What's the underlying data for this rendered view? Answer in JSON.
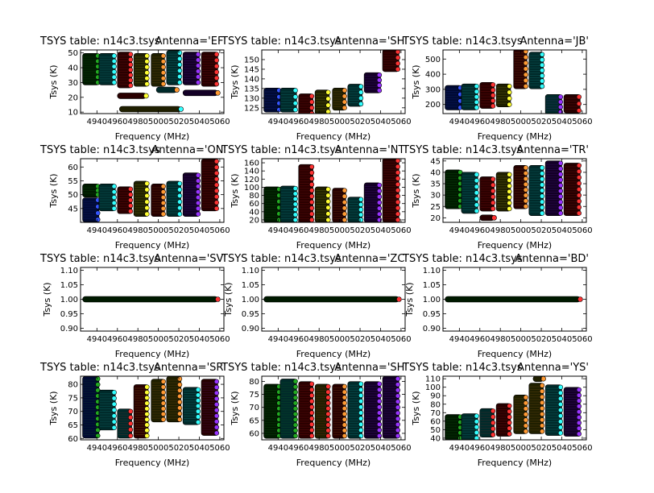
{
  "figure": {
    "background": "#ffffff",
    "panel_count": 12
  },
  "palette": {
    "band_dark": [
      "#001a00",
      "#002a2a",
      "#000a33",
      "#2a0000",
      "#1f1f00",
      "#130026",
      "#260000"
    ],
    "points": [
      "#22aa22",
      "#33ffff",
      "#3355ff",
      "#ff3333",
      "#ffff33",
      "#ff9933",
      "#9933ff",
      "#ff3399"
    ]
  },
  "chart_data": [
    {
      "type": "scatter",
      "title": "TSYS table: n14c3.tsys",
      "antenna": "Antenna='EF'",
      "xlabel": "Frequency (MHz)",
      "ylabel": "Tsys (K)",
      "xlim": [
        4924,
        5064
      ],
      "ylim": [
        9,
        52
      ],
      "xticks": [
        "4940",
        "4960",
        "4980",
        "5000",
        "5020",
        "5040",
        "5060"
      ],
      "yticks": [
        "10",
        "20",
        "30",
        "40",
        "50"
      ],
      "bands": [
        {
          "x0": 4926,
          "x1": 4942,
          "y0": 30,
          "y1": 48,
          "ci": 0,
          "pc": "#22aa22"
        },
        {
          "x0": 4942,
          "x1": 4958,
          "y0": 30,
          "y1": 48,
          "ci": 1,
          "pc": "#33ffff"
        },
        {
          "x0": 4960,
          "x1": 4974,
          "y0": 28,
          "y1": 49,
          "ci": 3,
          "pc": "#ff3333"
        },
        {
          "x0": 4976,
          "x1": 4990,
          "y0": 29,
          "y1": 48,
          "ci": 4,
          "pc": "#ffff33"
        },
        {
          "x0": 4993,
          "x1": 5006,
          "y0": 29,
          "y1": 48,
          "ci": 4,
          "pc": "#ff9933"
        },
        {
          "x0": 5008,
          "x1": 5022,
          "y0": 30,
          "y1": 50,
          "ci": 1,
          "pc": "#33ffff"
        },
        {
          "x0": 5024,
          "x1": 5040,
          "y0": 30,
          "y1": 49,
          "ci": 5,
          "pc": "#9933ff"
        },
        {
          "x0": 5042,
          "x1": 5058,
          "y0": 29,
          "y1": 49,
          "ci": 6,
          "pc": "#ff3333"
        },
        {
          "x0": 4960,
          "x1": 4988,
          "y0": 21,
          "y1": 21,
          "ci": 3,
          "pc": "#ffff33"
        },
        {
          "x0": 4962,
          "x1": 5022,
          "y0": 12,
          "y1": 12,
          "ci": 4,
          "pc": "#33ffff"
        },
        {
          "x0": 4998,
          "x1": 5018,
          "y0": 25,
          "y1": 25,
          "ci": 1,
          "pc": "#ff9933"
        },
        {
          "x0": 5024,
          "x1": 5058,
          "y0": 23,
          "y1": 23,
          "ci": 5,
          "pc": "#ff9933"
        }
      ]
    },
    {
      "type": "scatter",
      "title": "TSYS table: n14c3.tsys",
      "antenna": "Antenna='SH'",
      "xlabel": "Frequency (MHz)",
      "ylabel": "Tsys (K)",
      "xlim": [
        4924,
        5064
      ],
      "ylim": [
        122,
        155
      ],
      "xticks": [
        "4940",
        "4960",
        "4980",
        "5000",
        "5020",
        "5040",
        "5060"
      ],
      "yticks": [
        "125",
        "130",
        "135",
        "140",
        "145",
        "150"
      ],
      "bands": [
        {
          "x0": 4926,
          "x1": 4942,
          "y0": 124,
          "y1": 134,
          "ci": 2,
          "pc": "#3355ff"
        },
        {
          "x0": 4942,
          "x1": 4958,
          "y0": 124,
          "y1": 134,
          "ci": 1,
          "pc": "#33ffff"
        },
        {
          "x0": 4960,
          "x1": 4974,
          "y0": 122,
          "y1": 131,
          "ci": 3,
          "pc": "#ff3333"
        },
        {
          "x0": 4976,
          "x1": 4990,
          "y0": 123,
          "y1": 133,
          "ci": 4,
          "pc": "#ffff33"
        },
        {
          "x0": 4993,
          "x1": 5006,
          "y0": 125,
          "y1": 134,
          "ci": 4,
          "pc": "#ff9933"
        },
        {
          "x0": 5008,
          "x1": 5022,
          "y0": 127,
          "y1": 136,
          "ci": 1,
          "pc": "#33ffff"
        },
        {
          "x0": 5024,
          "x1": 5040,
          "y0": 134,
          "y1": 142,
          "ci": 5,
          "pc": "#9933ff"
        },
        {
          "x0": 5042,
          "x1": 5058,
          "y0": 145,
          "y1": 154,
          "ci": 6,
          "pc": "#ff3333"
        }
      ]
    },
    {
      "type": "scatter",
      "title": "TSYS table: n14c3.tsys",
      "antenna": "Antenna='JB'",
      "xlabel": "Frequency (MHz)",
      "ylabel": "Tsys (K)",
      "xlim": [
        4924,
        5064
      ],
      "ylim": [
        140,
        560
      ],
      "xticks": [
        "4940",
        "4960",
        "4980",
        "5000",
        "5020",
        "5040",
        "5060"
      ],
      "yticks": [
        "200",
        "300",
        "400",
        "500"
      ],
      "bands": [
        {
          "x0": 4926,
          "x1": 4942,
          "y0": 180,
          "y1": 310,
          "ci": 2,
          "pc": "#3355ff"
        },
        {
          "x0": 4942,
          "x1": 4958,
          "y0": 180,
          "y1": 320,
          "ci": 1,
          "pc": "#33ffff"
        },
        {
          "x0": 4960,
          "x1": 4974,
          "y0": 190,
          "y1": 330,
          "ci": 3,
          "pc": "#ff3333"
        },
        {
          "x0": 4976,
          "x1": 4990,
          "y0": 200,
          "y1": 320,
          "ci": 4,
          "pc": "#ffff33"
        },
        {
          "x0": 4993,
          "x1": 5006,
          "y0": 320,
          "y1": 550,
          "ci": 3,
          "pc": "#ff9933"
        },
        {
          "x0": 5008,
          "x1": 5022,
          "y0": 320,
          "y1": 530,
          "ci": 1,
          "pc": "#33ffff"
        },
        {
          "x0": 5024,
          "x1": 5040,
          "y0": 150,
          "y1": 250,
          "ci": 1,
          "pc": "#9933ff"
        },
        {
          "x0": 5042,
          "x1": 5058,
          "y0": 160,
          "y1": 250,
          "ci": 6,
          "pc": "#ff3333"
        }
      ]
    },
    {
      "type": "scatter",
      "title": "TSYS table: n14c3.tsys",
      "antenna": "Antenna='ON'",
      "xlabel": "Frequency (MHz)",
      "ylabel": "Tsys (K)",
      "xlim": [
        4924,
        5064
      ],
      "ylim": [
        40,
        63
      ],
      "xticks": [
        "4940",
        "4960",
        "4980",
        "5000",
        "5020",
        "5040",
        "5060"
      ],
      "yticks": [
        "45",
        "50",
        "55",
        "60"
      ],
      "bands": [
        {
          "x0": 4926,
          "x1": 4942,
          "y0": 41,
          "y1": 48,
          "ci": 2,
          "pc": "#3355ff"
        },
        {
          "x0": 4926,
          "x1": 4942,
          "y0": 50,
          "y1": 53,
          "ci": 0,
          "pc": "#22aa22"
        },
        {
          "x0": 4942,
          "x1": 4958,
          "y0": 45,
          "y1": 53,
          "ci": 1,
          "pc": "#33ffff"
        },
        {
          "x0": 4960,
          "x1": 4974,
          "y0": 44,
          "y1": 52,
          "ci": 3,
          "pc": "#ff3333"
        },
        {
          "x0": 4976,
          "x1": 4990,
          "y0": 43,
          "y1": 54,
          "ci": 4,
          "pc": "#ffff33"
        },
        {
          "x0": 4993,
          "x1": 5006,
          "y0": 43,
          "y1": 53,
          "ci": 6,
          "pc": "#ff9933"
        },
        {
          "x0": 5008,
          "x1": 5022,
          "y0": 43,
          "y1": 54,
          "ci": 1,
          "pc": "#33ffff"
        },
        {
          "x0": 5024,
          "x1": 5040,
          "y0": 43,
          "y1": 57,
          "ci": 5,
          "pc": "#9933ff"
        },
        {
          "x0": 5042,
          "x1": 5058,
          "y0": 45,
          "y1": 62,
          "ci": 6,
          "pc": "#ff3333"
        }
      ]
    },
    {
      "type": "scatter",
      "title": "TSYS table: n14c3.tsys",
      "antenna": "Antenna='NT'",
      "xlabel": "Frequency (MHz)",
      "ylabel": "Tsys (K)",
      "xlim": [
        4924,
        5064
      ],
      "ylim": [
        14,
        170
      ],
      "xticks": [
        "4940",
        "4960",
        "4980",
        "5000",
        "5020",
        "5040",
        "5060"
      ],
      "yticks": [
        "20",
        "40",
        "60",
        "80",
        "100",
        "120",
        "140",
        "160"
      ],
      "bands": [
        {
          "x0": 4926,
          "x1": 4942,
          "y0": 20,
          "y1": 95,
          "ci": 0,
          "pc": "#22aa22"
        },
        {
          "x0": 4942,
          "x1": 4958,
          "y0": 20,
          "y1": 97,
          "ci": 1,
          "pc": "#33ffff"
        },
        {
          "x0": 4960,
          "x1": 4974,
          "y0": 20,
          "y1": 150,
          "ci": 3,
          "pc": "#ff3333"
        },
        {
          "x0": 4976,
          "x1": 4990,
          "y0": 20,
          "y1": 95,
          "ci": 4,
          "pc": "#ffff33"
        },
        {
          "x0": 4993,
          "x1": 5006,
          "y0": 20,
          "y1": 92,
          "ci": 6,
          "pc": "#ff9933"
        },
        {
          "x0": 5008,
          "x1": 5022,
          "y0": 20,
          "y1": 70,
          "ci": 1,
          "pc": "#33ffff"
        },
        {
          "x0": 5024,
          "x1": 5040,
          "y0": 20,
          "y1": 105,
          "ci": 5,
          "pc": "#9933ff"
        },
        {
          "x0": 5042,
          "x1": 5058,
          "y0": 20,
          "y1": 165,
          "ci": 6,
          "pc": "#ff3333"
        }
      ]
    },
    {
      "type": "scatter",
      "title": "TSYS table: n14c3.tsys",
      "antenna": "Antenna='TR'",
      "xlabel": "Frequency (MHz)",
      "ylabel": "Tsys (K)",
      "xlim": [
        4924,
        5064
      ],
      "ylim": [
        18,
        46
      ],
      "xticks": [
        "4940",
        "4960",
        "4980",
        "5000",
        "5020",
        "5040",
        "5060"
      ],
      "yticks": [
        "20",
        "25",
        "30",
        "35",
        "40",
        "45"
      ],
      "bands": [
        {
          "x0": 4926,
          "x1": 4942,
          "y0": 25,
          "y1": 40,
          "ci": 0,
          "pc": "#22aa22"
        },
        {
          "x0": 4942,
          "x1": 4958,
          "y0": 23,
          "y1": 39,
          "ci": 1,
          "pc": "#33ffff"
        },
        {
          "x0": 4960,
          "x1": 4974,
          "y0": 24,
          "y1": 37,
          "ci": 3,
          "pc": "#ff3333"
        },
        {
          "x0": 4960,
          "x1": 4974,
          "y0": 20,
          "y1": 20,
          "ci": 3,
          "pc": "#ff3333"
        },
        {
          "x0": 4976,
          "x1": 4990,
          "y0": 24,
          "y1": 39,
          "ci": 4,
          "pc": "#ffff33"
        },
        {
          "x0": 4993,
          "x1": 5006,
          "y0": 25,
          "y1": 42,
          "ci": 6,
          "pc": "#ff9933"
        },
        {
          "x0": 5008,
          "x1": 5022,
          "y0": 22,
          "y1": 42,
          "ci": 1,
          "pc": "#33ffff"
        },
        {
          "x0": 5024,
          "x1": 5040,
          "y0": 22,
          "y1": 44,
          "ci": 5,
          "pc": "#9933ff"
        },
        {
          "x0": 5042,
          "x1": 5058,
          "y0": 22,
          "y1": 43,
          "ci": 6,
          "pc": "#ff3333"
        }
      ]
    },
    {
      "type": "scatter",
      "title": "TSYS table: n14c3.tsys",
      "antenna": "Antenna='SV'",
      "xlabel": "Frequency (MHz)",
      "ylabel": "Tsys (K)",
      "xlim": [
        4924,
        5064
      ],
      "ylim": [
        0.89,
        1.11
      ],
      "xticks": [
        "4940",
        "4960",
        "4980",
        "5000",
        "5020",
        "5040",
        "5060"
      ],
      "yticks": [
        "0.90",
        "0.95",
        "1.00",
        "1.05",
        "1.10"
      ],
      "bands": [
        {
          "x0": 4926,
          "x1": 5058,
          "y0": 1.0,
          "y1": 1.0,
          "ci": 0,
          "pc": "#ff3333"
        }
      ]
    },
    {
      "type": "scatter",
      "title": "TSYS table: n14c3.tsys",
      "antenna": "Antenna='ZC'",
      "xlabel": "Frequency (MHz)",
      "ylabel": "Tsys (K)",
      "xlim": [
        4924,
        5064
      ],
      "ylim": [
        0.89,
        1.11
      ],
      "xticks": [
        "4940",
        "4960",
        "4980",
        "5000",
        "5020",
        "5040",
        "5060"
      ],
      "yticks": [
        "0.90",
        "0.95",
        "1.00",
        "1.05",
        "1.10"
      ],
      "bands": [
        {
          "x0": 4926,
          "x1": 5058,
          "y0": 1.0,
          "y1": 1.0,
          "ci": 0,
          "pc": "#ff3333"
        }
      ]
    },
    {
      "type": "scatter",
      "title": "TSYS table: n14c3.tsys",
      "antenna": "Antenna='BD'",
      "xlabel": "Frequency (MHz)",
      "ylabel": "Tsys (K)",
      "xlim": [
        4924,
        5064
      ],
      "ylim": [
        0.89,
        1.11
      ],
      "xticks": [
        "4940",
        "4960",
        "4980",
        "5000",
        "5020",
        "5040",
        "5060"
      ],
      "yticks": [
        "0.90",
        "0.95",
        "1.00",
        "1.05",
        "1.10"
      ],
      "bands": [
        {
          "x0": 4926,
          "x1": 5058,
          "y0": 1.0,
          "y1": 1.0,
          "ci": 0,
          "pc": "#ff3333"
        }
      ]
    },
    {
      "type": "scatter",
      "title": "TSYS table: n14c3.tsys",
      "antenna": "Antenna='SR'",
      "xlabel": "Frequency (MHz)",
      "ylabel": "Tsys (K)",
      "xlim": [
        4924,
        5064
      ],
      "ylim": [
        59.5,
        83
      ],
      "xticks": [
        "4940",
        "4960",
        "4980",
        "5000",
        "5020",
        "5040",
        "5060"
      ],
      "yticks": [
        "60",
        "65",
        "70",
        "75",
        "80"
      ],
      "bands": [
        {
          "x0": 4926,
          "x1": 4942,
          "y0": 61,
          "y1": 82,
          "ci": 2,
          "pc": "#22aa22"
        },
        {
          "x0": 4942,
          "x1": 4958,
          "y0": 64,
          "y1": 77,
          "ci": 1,
          "pc": "#33ffff"
        },
        {
          "x0": 4960,
          "x1": 4974,
          "y0": 61,
          "y1": 70,
          "ci": 1,
          "pc": "#ff3333"
        },
        {
          "x0": 4976,
          "x1": 4990,
          "y0": 61,
          "y1": 79,
          "ci": 3,
          "pc": "#ffff33"
        },
        {
          "x0": 4993,
          "x1": 5006,
          "y0": 67,
          "y1": 81,
          "ci": 4,
          "pc": "#ff9933"
        },
        {
          "x0": 5008,
          "x1": 5022,
          "y0": 67,
          "y1": 82,
          "ci": 4,
          "pc": "#ff9933"
        },
        {
          "x0": 5024,
          "x1": 5040,
          "y0": 66,
          "y1": 78,
          "ci": 1,
          "pc": "#33ffff"
        },
        {
          "x0": 5042,
          "x1": 5058,
          "y0": 62,
          "y1": 81,
          "ci": 6,
          "pc": "#9933ff"
        }
      ]
    },
    {
      "type": "scatter",
      "title": "TSYS table: n14c3.tsys",
      "antenna": "Antenna='SH'",
      "xlabel": "Frequency (MHz)",
      "ylabel": "Tsys (K)",
      "xlim": [
        4924,
        5064
      ],
      "ylim": [
        57.5,
        82
      ],
      "xticks": [
        "4940",
        "4960",
        "4980",
        "5000",
        "5020",
        "5040",
        "5060"
      ],
      "yticks": [
        "60",
        "65",
        "70",
        "75",
        "80"
      ],
      "bands": [
        {
          "x0": 4926,
          "x1": 4942,
          "y0": 59,
          "y1": 78,
          "ci": 0,
          "pc": "#22aa22"
        },
        {
          "x0": 4942,
          "x1": 4958,
          "y0": 59,
          "y1": 80,
          "ci": 1,
          "pc": "#22aa22"
        },
        {
          "x0": 4960,
          "x1": 4974,
          "y0": 59,
          "y1": 79,
          "ci": 3,
          "pc": "#ff3333"
        },
        {
          "x0": 4976,
          "x1": 4990,
          "y0": 59,
          "y1": 78,
          "ci": 4,
          "pc": "#ff3333"
        },
        {
          "x0": 4993,
          "x1": 5006,
          "y0": 59,
          "y1": 78,
          "ci": 6,
          "pc": "#ff9933"
        },
        {
          "x0": 5008,
          "x1": 5022,
          "y0": 59,
          "y1": 79,
          "ci": 1,
          "pc": "#33ffff"
        },
        {
          "x0": 5024,
          "x1": 5040,
          "y0": 59,
          "y1": 79,
          "ci": 5,
          "pc": "#9933ff"
        },
        {
          "x0": 5042,
          "x1": 5058,
          "y0": 59,
          "y1": 81,
          "ci": 5,
          "pc": "#9933ff"
        }
      ]
    },
    {
      "type": "scatter",
      "title": "TSYS table: n14c3.tsys",
      "antenna": "Antenna='YS'",
      "xlabel": "Frequency (MHz)",
      "ylabel": "Tsys (K)",
      "xlim": [
        4924,
        5064
      ],
      "ylim": [
        38,
        113
      ],
      "xticks": [
        "4940",
        "4960",
        "4980",
        "5000",
        "5020",
        "5040",
        "5060"
      ],
      "yticks": [
        "40",
        "50",
        "60",
        "70",
        "80",
        "90",
        "100",
        "110"
      ],
      "bands": [
        {
          "x0": 4926,
          "x1": 4942,
          "y0": 40,
          "y1": 65,
          "ci": 0,
          "pc": "#22aa22"
        },
        {
          "x0": 4942,
          "x1": 4958,
          "y0": 40,
          "y1": 66,
          "ci": 1,
          "pc": "#33ffff"
        },
        {
          "x0": 4960,
          "x1": 4974,
          "y0": 44,
          "y1": 72,
          "ci": 1,
          "pc": "#ff3333"
        },
        {
          "x0": 4976,
          "x1": 4990,
          "y0": 45,
          "y1": 78,
          "ci": 6,
          "pc": "#ff3333"
        },
        {
          "x0": 4993,
          "x1": 5006,
          "y0": 48,
          "y1": 88,
          "ci": 4,
          "pc": "#ff9933"
        },
        {
          "x0": 5008,
          "x1": 5022,
          "y0": 48,
          "y1": 102,
          "ci": 4,
          "pc": "#ff9933"
        },
        {
          "x0": 5012,
          "x1": 5022,
          "y0": 110,
          "y1": 110,
          "ci": 4,
          "pc": "#ff9933"
        },
        {
          "x0": 5024,
          "x1": 5040,
          "y0": 46,
          "y1": 100,
          "ci": 1,
          "pc": "#33ffff"
        },
        {
          "x0": 5042,
          "x1": 5058,
          "y0": 45,
          "y1": 97,
          "ci": 5,
          "pc": "#9933ff"
        }
      ]
    }
  ]
}
